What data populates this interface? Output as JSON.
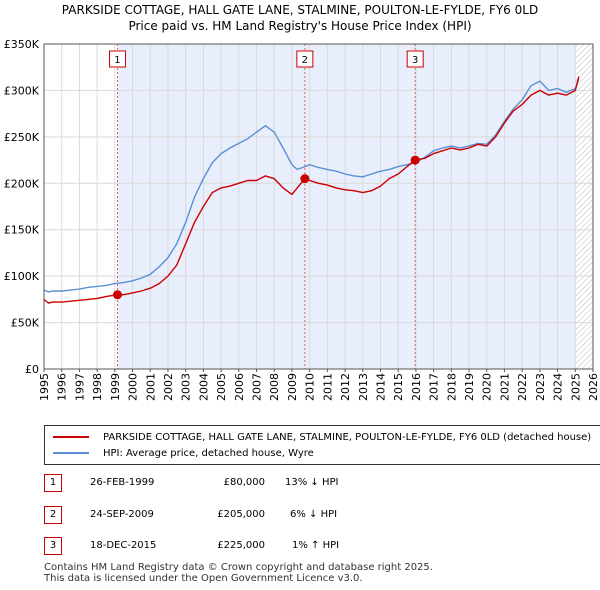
{
  "title_line1": "PARKSIDE COTTAGE, HALL GATE LANE, STALMINE, POULTON-LE-FYLDE, FY6 0LD",
  "title_line2": "Price paid vs. HM Land Registry's House Price Index (HPI)",
  "chart_data": {
    "type": "line",
    "title": "PARKSIDE COTTAGE, HALL GATE LANE, STALMINE, POULTON-LE-FYLDE, FY6 0LD — Price paid vs. HM Land Registry's House Price Index (HPI)",
    "xlabel": "",
    "ylabel": "",
    "xlim": [
      1995,
      2026
    ],
    "ylim": [
      0,
      350000
    ],
    "y_ticks": [
      0,
      50000,
      100000,
      150000,
      200000,
      250000,
      300000,
      350000
    ],
    "y_tick_labels": [
      "£0",
      "£50K",
      "£100K",
      "£150K",
      "£200K",
      "£250K",
      "£300K",
      "£350K"
    ],
    "x_ticks": [
      1995,
      1996,
      1997,
      1998,
      1999,
      2000,
      2001,
      2002,
      2003,
      2004,
      2005,
      2006,
      2007,
      2008,
      2009,
      2010,
      2011,
      2012,
      2013,
      2014,
      2015,
      2016,
      2017,
      2018,
      2019,
      2020,
      2021,
      2022,
      2023,
      2024,
      2025,
      2026
    ],
    "grid": true,
    "forecast_hatch_from": 2025.0,
    "series": [
      {
        "name": "PARKSIDE COTTAGE, HALL GATE LANE, STALMINE, POULTON-LE-FYLDE, FY6 0LD (detached house)",
        "color": "#cc0000",
        "x": [
          1995.0,
          1995.25,
          1995.5,
          1996.0,
          1996.5,
          1997.0,
          1997.5,
          1998.0,
          1998.5,
          1999.15,
          1999.5,
          2000.0,
          2000.5,
          2001.0,
          2001.5,
          2002.0,
          2002.5,
          2003.0,
          2003.5,
          2004.0,
          2004.5,
          2005.0,
          2005.5,
          2006.0,
          2006.5,
          2007.0,
          2007.5,
          2008.0,
          2008.5,
          2009.0,
          2009.3,
          2009.73,
          2010.0,
          2010.5,
          2011.0,
          2011.5,
          2012.0,
          2012.5,
          2013.0,
          2013.5,
          2014.0,
          2014.5,
          2015.0,
          2015.5,
          2015.96,
          2016.5,
          2017.0,
          2017.5,
          2018.0,
          2018.5,
          2019.0,
          2019.5,
          2020.0,
          2020.5,
          2021.0,
          2021.5,
          2022.0,
          2022.5,
          2023.0,
          2023.5,
          2024.0,
          2024.5,
          2025.0,
          2025.2
        ],
        "values": [
          75000,
          71000,
          72000,
          72000,
          73000,
          74000,
          75000,
          76000,
          78000,
          80000,
          80000,
          82000,
          84000,
          87000,
          92000,
          100000,
          112000,
          135000,
          158000,
          175000,
          190000,
          195000,
          197000,
          200000,
          203000,
          203000,
          208000,
          205000,
          195000,
          188000,
          195000,
          205000,
          203000,
          200000,
          198000,
          195000,
          193000,
          192000,
          190000,
          192000,
          197000,
          205000,
          210000,
          218000,
          225000,
          227000,
          232000,
          235000,
          238000,
          236000,
          238000,
          242000,
          240000,
          250000,
          265000,
          278000,
          285000,
          295000,
          300000,
          295000,
          297000,
          295000,
          300000,
          315000
        ]
      },
      {
        "name": "HPI: Average price, detached house, Wyre",
        "color": "#5b8fd6",
        "x": [
          1995.0,
          1995.25,
          1995.5,
          1996.0,
          1996.5,
          1997.0,
          1997.5,
          1998.0,
          1998.5,
          1999.0,
          1999.5,
          2000.0,
          2000.5,
          2001.0,
          2001.5,
          2002.0,
          2002.5,
          2003.0,
          2003.5,
          2004.0,
          2004.5,
          2005.0,
          2005.5,
          2006.0,
          2006.5,
          2007.0,
          2007.5,
          2008.0,
          2008.5,
          2009.0,
          2009.3,
          2009.73,
          2010.0,
          2010.5,
          2011.0,
          2011.5,
          2012.0,
          2012.5,
          2013.0,
          2013.5,
          2014.0,
          2014.5,
          2015.0,
          2015.5,
          2015.96,
          2016.5,
          2017.0,
          2017.5,
          2018.0,
          2018.5,
          2019.0,
          2019.5,
          2020.0,
          2020.5,
          2021.0,
          2021.5,
          2022.0,
          2022.5,
          2023.0,
          2023.5,
          2024.0,
          2024.5,
          2025.0,
          2025.2
        ],
        "values": [
          85000,
          83000,
          84000,
          84000,
          85000,
          86000,
          88000,
          89000,
          90000,
          92000,
          93000,
          95000,
          98000,
          102000,
          110000,
          120000,
          135000,
          158000,
          185000,
          205000,
          222000,
          232000,
          238000,
          243000,
          248000,
          255000,
          262000,
          255000,
          238000,
          220000,
          215000,
          218000,
          220000,
          217000,
          215000,
          213000,
          210000,
          208000,
          207000,
          210000,
          213000,
          215000,
          218000,
          220000,
          222000,
          228000,
          235000,
          238000,
          240000,
          238000,
          240000,
          243000,
          242000,
          252000,
          267000,
          280000,
          290000,
          305000,
          310000,
          300000,
          302000,
          298000,
          302000,
          312000
        ]
      }
    ],
    "sales": [
      {
        "marker": "1",
        "date": "26-FEB-1999",
        "x": 1999.15,
        "price": 80000,
        "price_label": "£80,000",
        "hpi_label": "13% ↓ HPI"
      },
      {
        "marker": "2",
        "date": "24-SEP-2009",
        "x": 2009.73,
        "price": 205000,
        "price_label": "£205,000",
        "hpi_label": "6% ↓ HPI"
      },
      {
        "marker": "3",
        "date": "18-DEC-2015",
        "x": 2015.96,
        "price": 225000,
        "price_label": "£225,000",
        "hpi_label": "1% ↑ HPI"
      }
    ]
  },
  "legend": {
    "property_label": "PARKSIDE COTTAGE, HALL GATE LANE, STALMINE, POULTON-LE-FYLDE, FY6 0LD (detached house)",
    "hpi_label": "HPI: Average price, detached house, Wyre"
  },
  "footer": {
    "line1": "Contains HM Land Registry data © Crown copyright and database right 2025.",
    "line2": "This data is licensed under the Open Government Licence v3.0."
  }
}
